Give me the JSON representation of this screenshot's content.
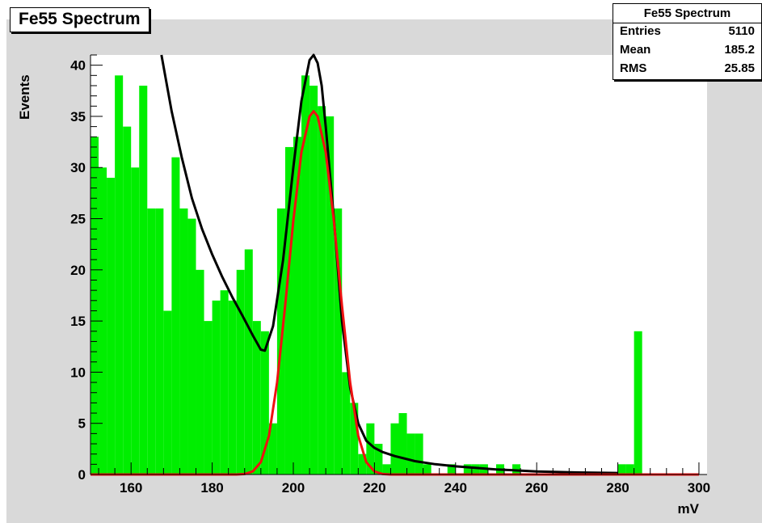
{
  "title": "Fe55 Spectrum",
  "stats": {
    "title": "Fe55 Spectrum",
    "rows": [
      {
        "label": "Entries",
        "value": "5110"
      },
      {
        "label": "Mean",
        "value": "185.2"
      },
      {
        "label": "RMS",
        "value": "25.85"
      }
    ]
  },
  "colors": {
    "background": "#d8d8d8",
    "frame": "#ffffff",
    "histogram": "#00ee00",
    "fit_total": "#000000",
    "fit_peak": "#ee1111"
  },
  "chart_data": {
    "type": "bar",
    "title": "Fe55 Spectrum",
    "xlabel": "mV",
    "ylabel": "Events",
    "xlim": [
      150,
      302
    ],
    "ylim": [
      0,
      41
    ],
    "xticks": [
      "160",
      "180",
      "200",
      "220",
      "240",
      "260",
      "280",
      "300"
    ],
    "yticks": [
      "0",
      "5",
      "10",
      "15",
      "20",
      "25",
      "30",
      "35",
      "40"
    ],
    "bin_width": 2,
    "bins_x": [
      150,
      152,
      154,
      156,
      158,
      160,
      162,
      164,
      166,
      168,
      170,
      172,
      174,
      176,
      178,
      180,
      182,
      184,
      186,
      188,
      190,
      192,
      194,
      196,
      198,
      200,
      202,
      204,
      206,
      208,
      210,
      212,
      214,
      216,
      218,
      220,
      222,
      224,
      226,
      228,
      230,
      232,
      234,
      236,
      238,
      240,
      242,
      244,
      246,
      248,
      250,
      252,
      254,
      256,
      258,
      260,
      262,
      264,
      266,
      268,
      270,
      272,
      274,
      276,
      278,
      280,
      282,
      284
    ],
    "values": [
      33,
      30,
      29,
      39,
      34,
      30,
      38,
      26,
      26,
      16,
      31,
      26,
      25,
      20,
      15,
      17,
      18,
      17,
      20,
      22,
      15,
      14,
      5,
      26,
      32,
      33,
      39,
      38,
      36,
      35,
      26,
      10,
      7,
      2,
      5,
      3,
      1,
      5,
      6,
      4,
      4,
      1,
      0,
      0,
      1,
      0,
      1,
      1,
      1,
      0,
      1,
      0,
      1,
      0,
      0,
      0,
      0,
      0,
      0,
      0,
      0,
      0,
      0,
      0,
      0,
      1,
      1,
      14
    ],
    "series": [
      {
        "name": "",
        "type": "curve",
        "color": "#000000",
        "x": [
          167.5,
          170,
          172.5,
          175,
          177.5,
          180,
          182.5,
          185,
          187.5,
          190,
          192,
          193,
          195,
          197.5,
          200,
          202,
          204,
          205,
          206,
          207,
          208,
          210,
          212,
          214,
          216,
          218,
          220,
          222,
          225,
          230,
          235,
          240,
          250,
          260,
          270,
          280
        ],
        "y": [
          41,
          35.5,
          31,
          27,
          24,
          21.5,
          19.3,
          17.3,
          15.5,
          13.6,
          12.2,
          12.1,
          14.5,
          21,
          30,
          36.5,
          40.5,
          41,
          40.2,
          38,
          34,
          25,
          15,
          8.5,
          5,
          3.3,
          2.6,
          2.2,
          1.8,
          1.3,
          1,
          0.8,
          0.5,
          0.3,
          0.2,
          0.15
        ]
      },
      {
        "name": "",
        "type": "curve",
        "color": "#ee1111",
        "x": [
          150,
          186,
          188,
          190,
          192,
          194,
          196,
          198,
          200,
          202,
          204,
          205,
          206,
          208,
          210,
          212,
          214,
          216,
          218,
          220,
          222,
          224,
          300
        ],
        "y": [
          0,
          0,
          0.05,
          0.3,
          1.2,
          3.8,
          9,
          16.5,
          24.8,
          31.5,
          35,
          35.5,
          35,
          31.5,
          24.8,
          16.5,
          9,
          3.8,
          1.2,
          0.3,
          0.05,
          0,
          0
        ]
      }
    ],
    "grid": false,
    "legend": "none"
  }
}
